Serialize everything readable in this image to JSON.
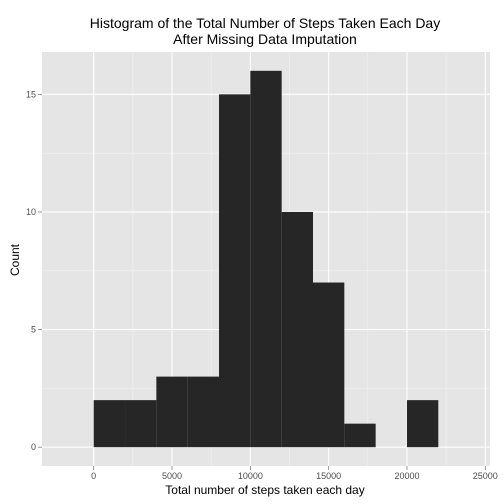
{
  "chart_data": {
    "type": "bar",
    "title_line1": "Histogram of the Total Number of Steps Taken Each Day",
    "title_line2": "After Missing Data Imputation",
    "xlabel": "Total number of steps taken each day",
    "ylabel": "Count",
    "xlim": [
      -3300,
      25300
    ],
    "ylim": [
      -0.8,
      16.8
    ],
    "x_ticks": [
      0,
      5000,
      10000,
      15000,
      20000,
      25000
    ],
    "y_ticks": [
      0,
      5,
      10,
      15
    ],
    "bin_width": 2000,
    "bins": [
      {
        "start": 0,
        "end": 2000,
        "count": 2
      },
      {
        "start": 2000,
        "end": 4000,
        "count": 2
      },
      {
        "start": 4000,
        "end": 6000,
        "count": 3
      },
      {
        "start": 6000,
        "end": 8000,
        "count": 3
      },
      {
        "start": 8000,
        "end": 10000,
        "count": 15
      },
      {
        "start": 10000,
        "end": 12000,
        "count": 16
      },
      {
        "start": 12000,
        "end": 14000,
        "count": 10
      },
      {
        "start": 14000,
        "end": 16000,
        "count": 7
      },
      {
        "start": 16000,
        "end": 18000,
        "count": 1
      },
      {
        "start": 18000,
        "end": 20000,
        "count": 0
      },
      {
        "start": 20000,
        "end": 22000,
        "count": 2
      }
    ],
    "colors": {
      "panel": "#e5e5e5",
      "grid_major": "#ffffff",
      "grid_minor": "#f2f2f2",
      "bar": "#262626"
    },
    "grid": true
  }
}
